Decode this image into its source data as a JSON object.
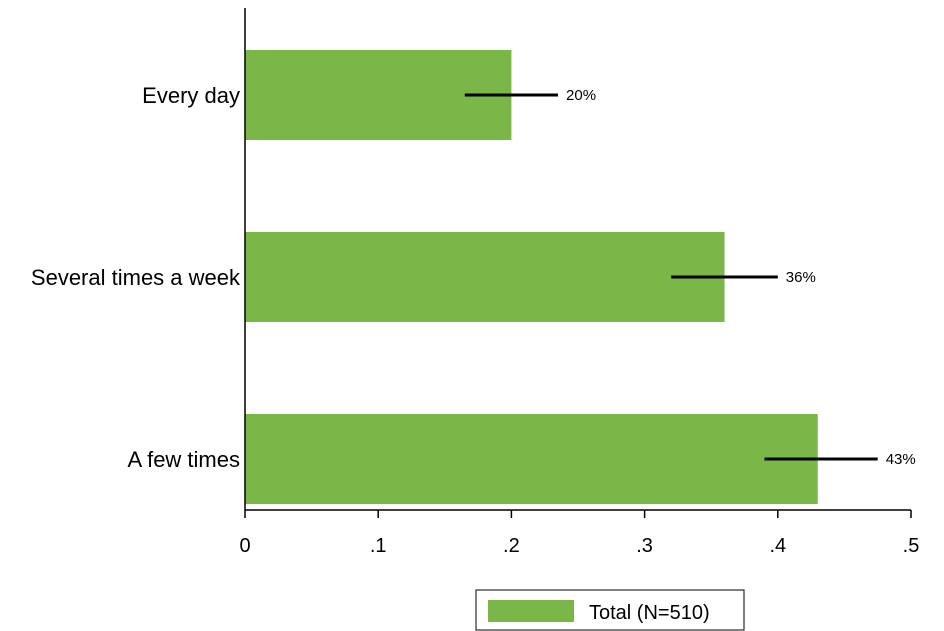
{
  "chart_data": {
    "type": "bar",
    "orientation": "horizontal",
    "categories": [
      "Every day",
      "Several times a week",
      "A few times"
    ],
    "series": [
      {
        "name": "Total (N=510)",
        "values": [
          0.2,
          0.36,
          0.43
        ],
        "ci_low": [
          0.165,
          0.32,
          0.39
        ],
        "ci_high": [
          0.235,
          0.4,
          0.475
        ],
        "data_labels": [
          "20%",
          "36%",
          "43%"
        ]
      }
    ],
    "xlim": [
      0,
      0.5
    ],
    "xticks": [
      0,
      0.1,
      0.2,
      0.3,
      0.4,
      0.5
    ],
    "xtick_labels": [
      "0",
      ".1",
      ".2",
      ".3",
      ".4",
      ".5"
    ],
    "grid": false,
    "legend": "bottom",
    "colors": {
      "bar": "#7ab648",
      "error_bar": "#000000",
      "axis": "#000000"
    }
  }
}
